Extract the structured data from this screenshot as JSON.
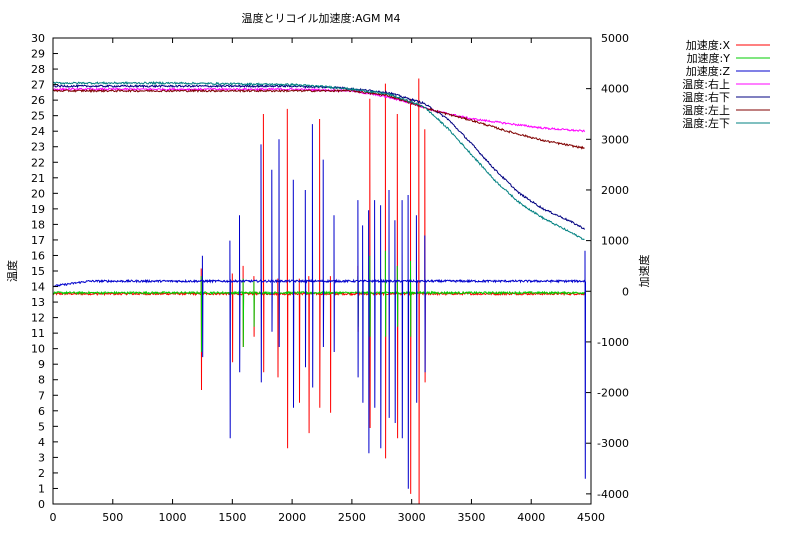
{
  "chart_data": {
    "type": "line",
    "title": "温度とリコイル加速度:AGM M4",
    "xlabel": "",
    "ylabel": "温度",
    "y2label": "加速度",
    "xlim": [
      0,
      4500
    ],
    "ylim": [
      0,
      30
    ],
    "y2lim": [
      -4200,
      5000
    ],
    "x_ticks": [
      0,
      500,
      1000,
      1500,
      2000,
      2500,
      3000,
      3500,
      4000,
      4500
    ],
    "y_ticks": [
      0,
      1,
      2,
      3,
      4,
      5,
      6,
      7,
      8,
      9,
      10,
      11,
      12,
      13,
      14,
      15,
      16,
      17,
      18,
      19,
      20,
      21,
      22,
      23,
      24,
      25,
      26,
      27,
      28,
      29,
      30
    ],
    "y2_ticks": [
      -4000,
      -3000,
      -2000,
      -1000,
      0,
      1000,
      2000,
      3000,
      4000,
      5000
    ],
    "grid": false,
    "legend_position": "top-right, outside plot",
    "series": [
      {
        "name": "加速度:X",
        "axis": "y2",
        "color": "#ff0000",
        "baseline": [
          [
            0,
            -50
          ],
          [
            4450,
            -50
          ]
        ],
        "spikes": [
          [
            1240,
            450,
            -1950
          ],
          [
            1500,
            350,
            -1400
          ],
          [
            1590,
            500,
            -1100
          ],
          [
            1680,
            300,
            -900
          ],
          [
            1760,
            3500,
            -1600
          ],
          [
            1880,
            250,
            -1700
          ],
          [
            1960,
            3600,
            -3100
          ],
          [
            2060,
            250,
            -2200
          ],
          [
            2140,
            300,
            -2800
          ],
          [
            2230,
            3400,
            -2300
          ],
          [
            2320,
            300,
            -2400
          ],
          [
            2550,
            500,
            -800
          ],
          [
            2650,
            3800,
            -2700
          ],
          [
            2780,
            4100,
            -3300
          ],
          [
            2880,
            3500,
            -2900
          ],
          [
            2990,
            3800,
            -4000
          ],
          [
            3060,
            4200,
            -4200
          ],
          [
            3110,
            3200,
            -1800
          ]
        ]
      },
      {
        "name": "加速度:Y",
        "axis": "y2",
        "color": "#00cc00",
        "baseline": [
          [
            0,
            -30
          ],
          [
            4450,
            -30
          ]
        ],
        "spikes": [
          [
            1240,
            300,
            -1200
          ],
          [
            1590,
            250,
            -1100
          ],
          [
            1680,
            200,
            -700
          ],
          [
            2550,
            300,
            -700
          ],
          [
            2650,
            700,
            -900
          ],
          [
            2780,
            800,
            -900
          ],
          [
            2880,
            500,
            -700
          ],
          [
            2990,
            600,
            -900
          ]
        ]
      },
      {
        "name": "加速度:Z",
        "axis": "y2",
        "color": "#0000cc",
        "baseline": [
          [
            0,
            100
          ],
          [
            300,
            200
          ],
          [
            4450,
            200
          ]
        ],
        "spikes": [
          [
            1250,
            700,
            -1300
          ],
          [
            1480,
            1000,
            -2900
          ],
          [
            1560,
            1500,
            -1600
          ],
          [
            1740,
            2900,
            -1800
          ],
          [
            1830,
            2400,
            -800
          ],
          [
            1890,
            3000,
            -1100
          ],
          [
            2010,
            2200,
            -2300
          ],
          [
            2110,
            2000,
            -1500
          ],
          [
            2170,
            3300,
            -1900
          ],
          [
            2260,
            2600,
            -1100
          ],
          [
            2350,
            1500,
            -1200
          ],
          [
            2550,
            1800,
            -1700
          ],
          [
            2590,
            1300,
            -2200
          ],
          [
            2640,
            1600,
            -3200
          ],
          [
            2690,
            1800,
            -2300
          ],
          [
            2740,
            1700,
            -3100
          ],
          [
            2810,
            2000,
            -2500
          ],
          [
            2860,
            1400,
            -2600
          ],
          [
            2920,
            1800,
            -2900
          ],
          [
            2970,
            1900,
            -3900
          ],
          [
            3040,
            1500,
            -2200
          ],
          [
            3110,
            1100,
            -1600
          ],
          [
            4450,
            800,
            -3700
          ]
        ]
      },
      {
        "name": "温度:右上",
        "axis": "y",
        "color": "#ff00ff",
        "points": [
          [
            0,
            26.7
          ],
          [
            1000,
            26.7
          ],
          [
            2000,
            26.7
          ],
          [
            2500,
            26.6
          ],
          [
            2800,
            26.2
          ],
          [
            3000,
            25.8
          ],
          [
            3200,
            25.3
          ],
          [
            3500,
            24.8
          ],
          [
            3800,
            24.5
          ],
          [
            4100,
            24.2
          ],
          [
            4450,
            24.0
          ]
        ]
      },
      {
        "name": "温度:右下",
        "axis": "y",
        "color": "#000080",
        "points": [
          [
            0,
            26.9
          ],
          [
            1000,
            26.9
          ],
          [
            2000,
            26.9
          ],
          [
            2400,
            26.8
          ],
          [
            2800,
            26.5
          ],
          [
            3100,
            25.8
          ],
          [
            3300,
            24.8
          ],
          [
            3500,
            23.2
          ],
          [
            3700,
            21.5
          ],
          [
            3900,
            20.0
          ],
          [
            4100,
            19.0
          ],
          [
            4300,
            18.3
          ],
          [
            4450,
            17.7
          ]
        ]
      },
      {
        "name": "温度:左上",
        "axis": "y",
        "color": "#800000",
        "points": [
          [
            0,
            26.6
          ],
          [
            1000,
            26.6
          ],
          [
            2000,
            26.6
          ],
          [
            2500,
            26.6
          ],
          [
            2800,
            26.3
          ],
          [
            3000,
            25.8
          ],
          [
            3200,
            25.3
          ],
          [
            3500,
            24.7
          ],
          [
            3800,
            24.0
          ],
          [
            4100,
            23.4
          ],
          [
            4450,
            22.9
          ]
        ]
      },
      {
        "name": "温度:左下",
        "axis": "y",
        "color": "#008080",
        "points": [
          [
            0,
            27.1
          ],
          [
            1000,
            27.1
          ],
          [
            2000,
            27.0
          ],
          [
            2400,
            26.8
          ],
          [
            2800,
            26.4
          ],
          [
            3100,
            25.6
          ],
          [
            3300,
            24.2
          ],
          [
            3500,
            22.5
          ],
          [
            3700,
            20.8
          ],
          [
            3900,
            19.4
          ],
          [
            4100,
            18.4
          ],
          [
            4300,
            17.6
          ],
          [
            4450,
            17.0
          ]
        ]
      }
    ]
  }
}
